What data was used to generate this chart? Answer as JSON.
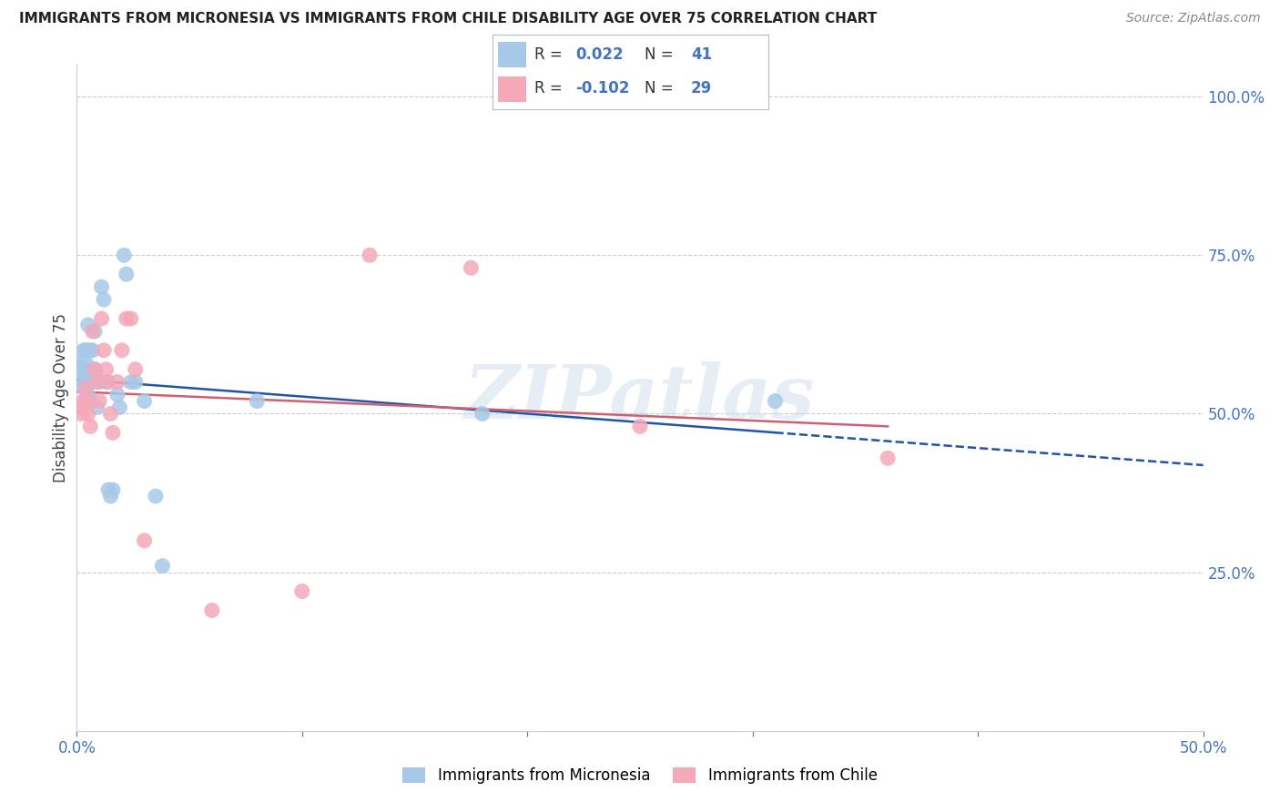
{
  "title": "IMMIGRANTS FROM MICRONESIA VS IMMIGRANTS FROM CHILE DISABILITY AGE OVER 75 CORRELATION CHART",
  "source": "Source: ZipAtlas.com",
  "ylabel": "Disability Age Over 75",
  "right_yticks": [
    "100.0%",
    "75.0%",
    "50.0%",
    "25.0%"
  ],
  "right_ytick_vals": [
    1.0,
    0.75,
    0.5,
    0.25
  ],
  "xlim": [
    0.0,
    0.5
  ],
  "ylim": [
    0.0,
    1.05
  ],
  "micronesia_color": "#a8c8e8",
  "chile_color": "#f4a8b8",
  "micronesia_line_color": "#2255aa",
  "chile_line_color": "#d06070",
  "micronesia_R": 0.022,
  "micronesia_N": 41,
  "chile_R": -0.102,
  "chile_N": 29,
  "legend_label_micronesia": "Immigrants from Micronesia",
  "legend_label_chile": "Immigrants from Chile",
  "micronesia_x": [
    0.001,
    0.002,
    0.002,
    0.003,
    0.003,
    0.003,
    0.004,
    0.004,
    0.004,
    0.004,
    0.005,
    0.005,
    0.005,
    0.005,
    0.006,
    0.006,
    0.006,
    0.007,
    0.007,
    0.008,
    0.008,
    0.009,
    0.01,
    0.011,
    0.012,
    0.013,
    0.014,
    0.015,
    0.016,
    0.018,
    0.019,
    0.021,
    0.022,
    0.024,
    0.026,
    0.03,
    0.035,
    0.038,
    0.08,
    0.18,
    0.31
  ],
  "micronesia_y": [
    0.58,
    0.57,
    0.55,
    0.6,
    0.57,
    0.54,
    0.6,
    0.58,
    0.55,
    0.52,
    0.64,
    0.6,
    0.57,
    0.53,
    0.6,
    0.55,
    0.52,
    0.6,
    0.56,
    0.63,
    0.57,
    0.51,
    0.55,
    0.7,
    0.68,
    0.55,
    0.38,
    0.37,
    0.38,
    0.53,
    0.51,
    0.75,
    0.72,
    0.55,
    0.55,
    0.52,
    0.37,
    0.26,
    0.52,
    0.5,
    0.52
  ],
  "chile_x": [
    0.001,
    0.002,
    0.003,
    0.004,
    0.005,
    0.005,
    0.006,
    0.007,
    0.008,
    0.009,
    0.01,
    0.011,
    0.012,
    0.013,
    0.014,
    0.015,
    0.016,
    0.018,
    0.02,
    0.022,
    0.024,
    0.026,
    0.03,
    0.06,
    0.1,
    0.13,
    0.175,
    0.25,
    0.36
  ],
  "chile_y": [
    0.51,
    0.5,
    0.52,
    0.54,
    0.52,
    0.5,
    0.48,
    0.63,
    0.57,
    0.55,
    0.52,
    0.65,
    0.6,
    0.57,
    0.55,
    0.5,
    0.47,
    0.55,
    0.6,
    0.65,
    0.65,
    0.57,
    0.3,
    0.19,
    0.22,
    0.75,
    0.73,
    0.48,
    0.43
  ],
  "watermark_text": "ZIPatlas",
  "background_color": "#ffffff",
  "grid_color": "#cccccc"
}
